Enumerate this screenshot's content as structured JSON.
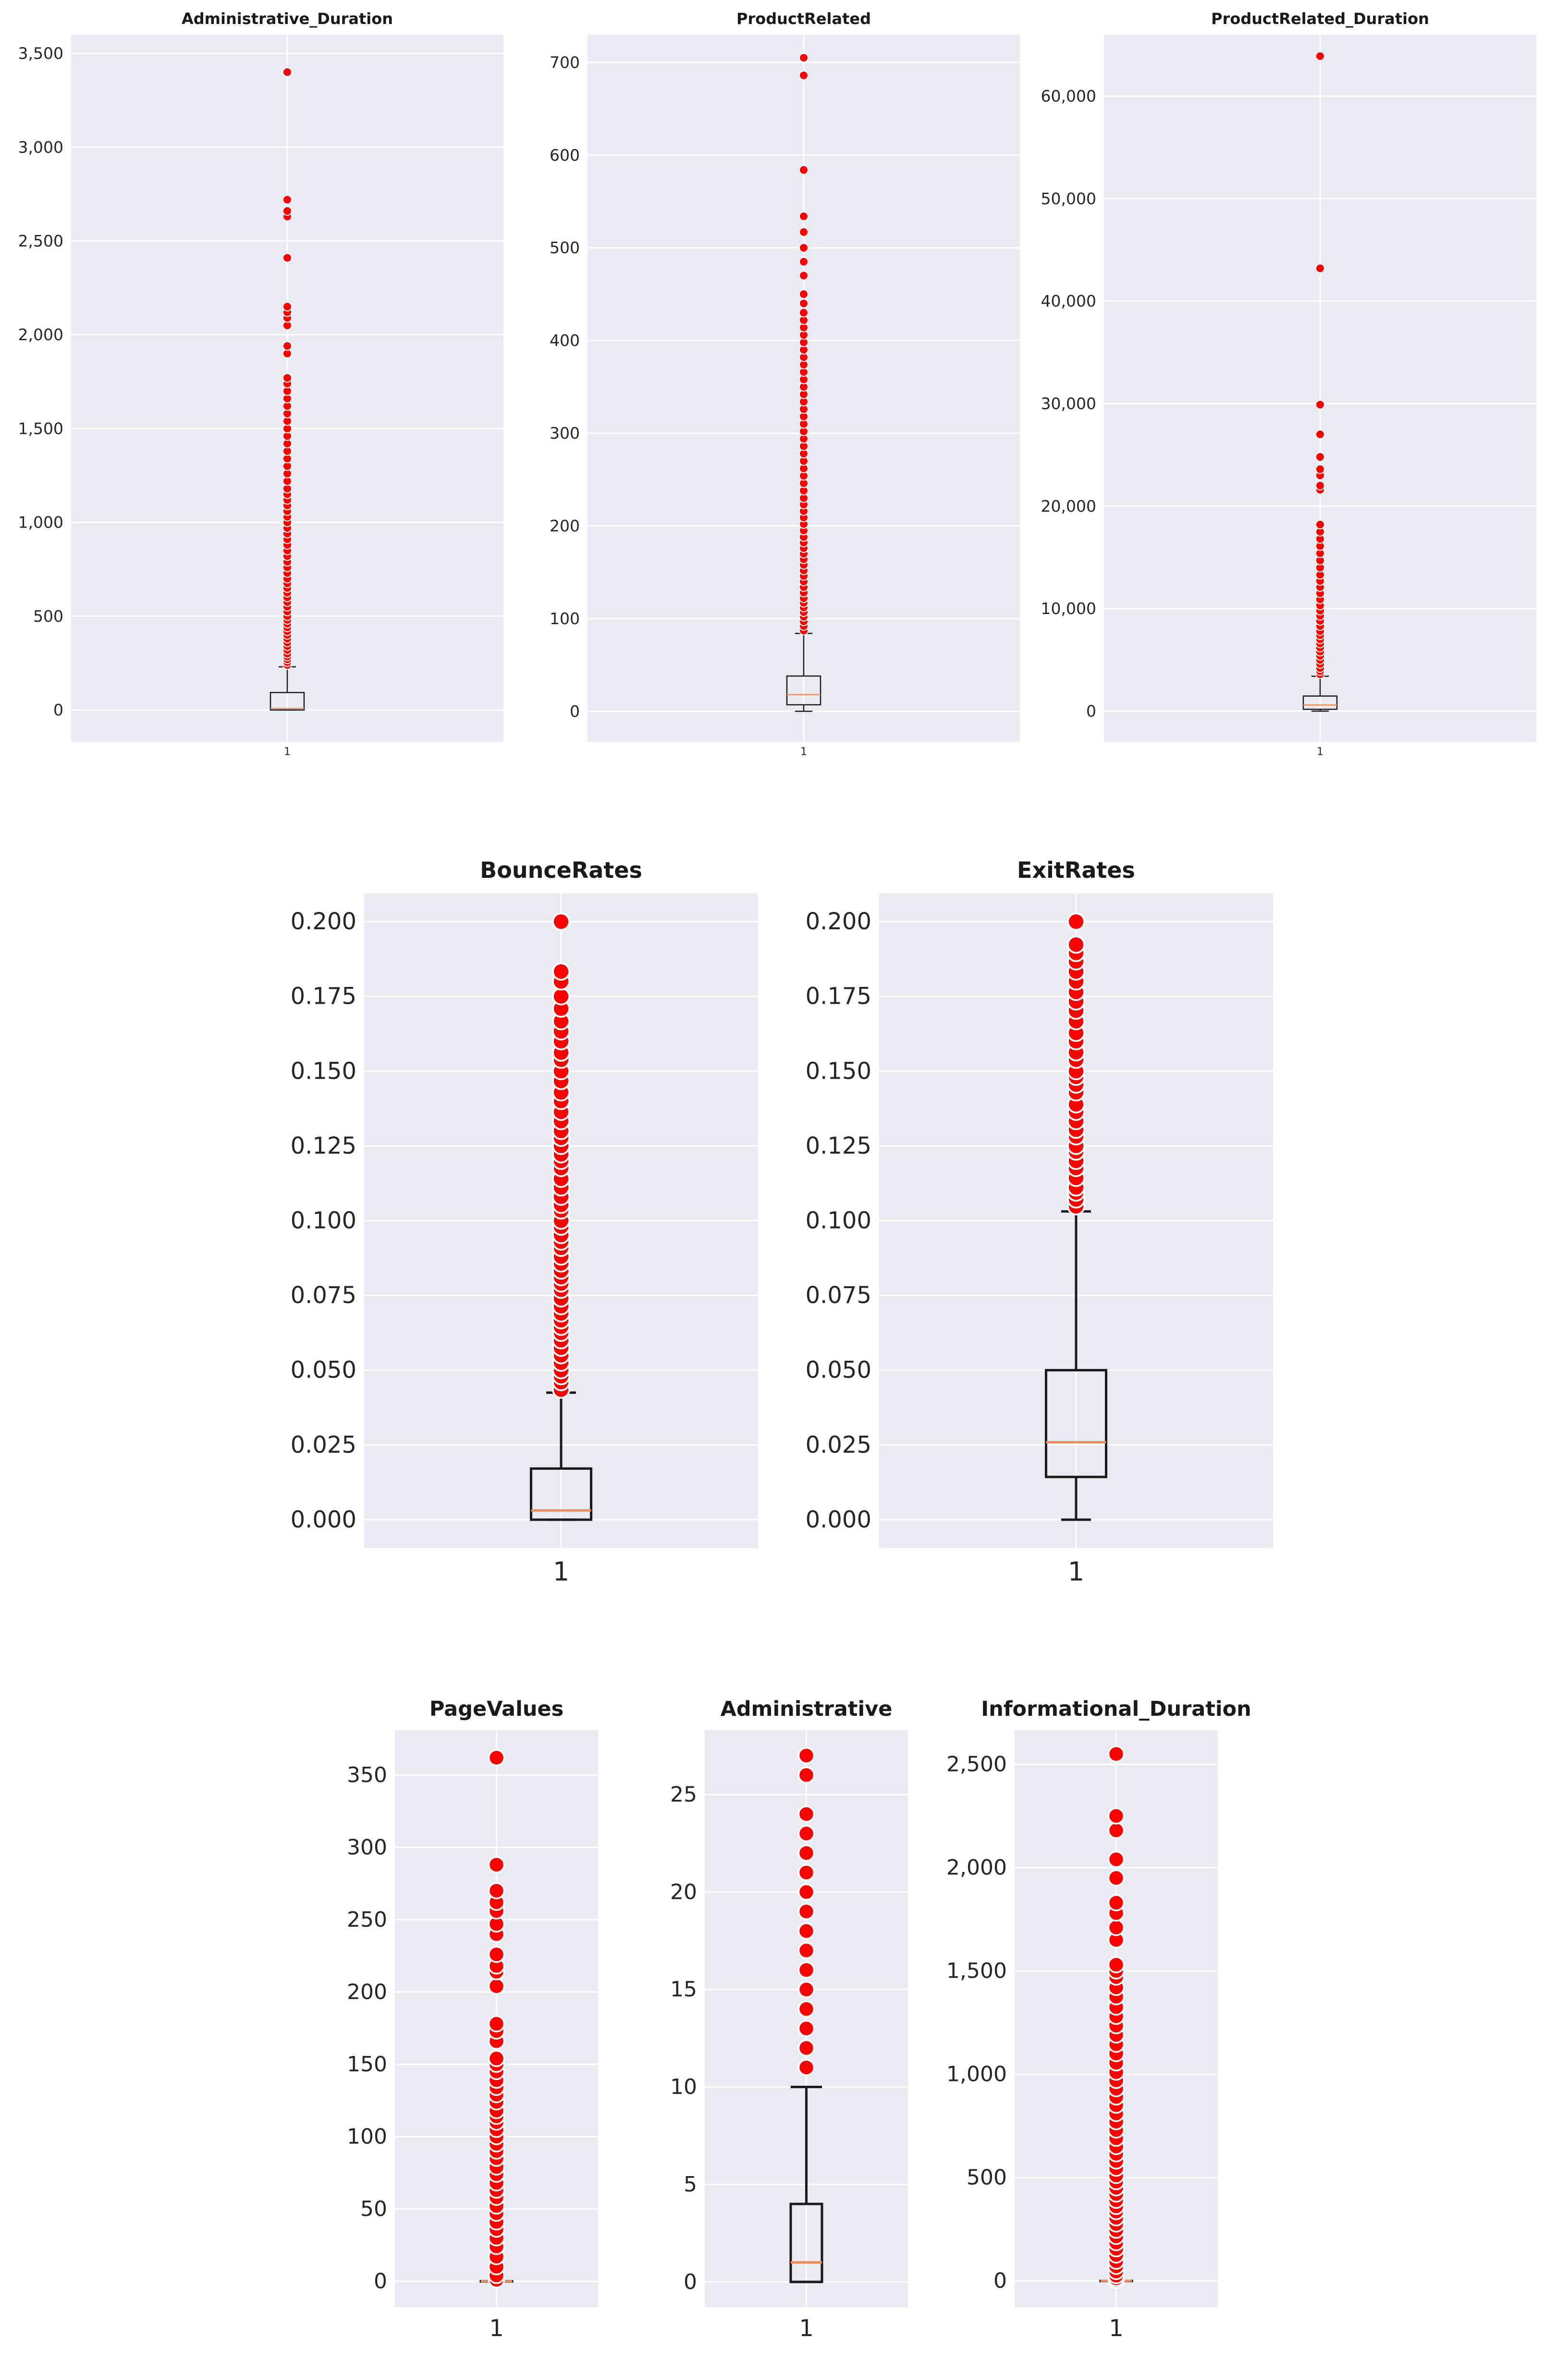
{
  "chart_data": [
    {
      "type": "box",
      "title": "Administrative_Duration",
      "ylim": [
        -170,
        3600
      ],
      "yticks": [
        0,
        500,
        1000,
        1500,
        2000,
        2500,
        3000,
        3500
      ],
      "ytick_labels": [
        "0",
        "500",
        "1,000",
        "1,500",
        "2,000",
        "2,500",
        "3,000",
        "3,500"
      ],
      "xtick_labels": [
        "1"
      ],
      "stats": {
        "whislo": 0,
        "q1": 0,
        "med": 8,
        "q3": 93,
        "whishi": 230
      },
      "outliers": [
        240,
        255,
        270,
        285,
        300,
        320,
        340,
        360,
        380,
        400,
        420,
        440,
        460,
        480,
        500,
        525,
        550,
        575,
        600,
        625,
        650,
        675,
        700,
        730,
        760,
        790,
        820,
        850,
        880,
        910,
        940,
        970,
        1000,
        1030,
        1060,
        1090,
        1120,
        1150,
        1180,
        1220,
        1260,
        1300,
        1340,
        1380,
        1420,
        1460,
        1500,
        1540,
        1580,
        1620,
        1660,
        1700,
        1740,
        1770,
        1900,
        1940,
        2050,
        2090,
        2120,
        2150,
        2410,
        2630,
        2660,
        2720,
        3400
      ]
    },
    {
      "type": "box",
      "title": "ProductRelated",
      "ylim": [
        -33,
        730
      ],
      "yticks": [
        0,
        100,
        200,
        300,
        400,
        500,
        600,
        700
      ],
      "ytick_labels": [
        "0",
        "100",
        "200",
        "300",
        "400",
        "500",
        "600",
        "700"
      ],
      "xtick_labels": [
        "1"
      ],
      "stats": {
        "whislo": 0,
        "q1": 7,
        "med": 18,
        "q3": 38,
        "whishi": 84
      },
      "outliers": [
        87,
        92,
        97,
        102,
        107,
        112,
        117,
        122,
        128,
        134,
        140,
        146,
        152,
        158,
        164,
        170,
        176,
        182,
        188,
        195,
        202,
        209,
        216,
        223,
        230,
        238,
        246,
        254,
        262,
        270,
        278,
        286,
        294,
        302,
        310,
        318,
        326,
        334,
        342,
        350,
        358,
        366,
        374,
        382,
        390,
        398,
        406,
        414,
        422,
        430,
        440,
        450,
        470,
        485,
        500,
        517,
        534,
        584,
        686,
        705
      ]
    },
    {
      "type": "box",
      "title": "ProductRelated_Duration",
      "ylim": [
        -3000,
        66000
      ],
      "yticks": [
        0,
        10000,
        20000,
        30000,
        40000,
        50000,
        60000
      ],
      "ytick_labels": [
        "0",
        "10,000",
        "20,000",
        "30,000",
        "40,000",
        "50,000",
        "60,000"
      ],
      "xtick_labels": [
        "1"
      ],
      "stats": {
        "whislo": 0,
        "q1": 180,
        "med": 600,
        "q3": 1470,
        "whishi": 3400
      },
      "outliers": [
        3600,
        3900,
        4200,
        4600,
        5000,
        5400,
        5800,
        6200,
        6600,
        7000,
        7400,
        7800,
        8300,
        8800,
        9300,
        9800,
        10300,
        10900,
        11500,
        12100,
        12700,
        13300,
        14000,
        14700,
        15400,
        16100,
        16800,
        17500,
        18200,
        21600,
        22000,
        23000,
        23600,
        24800,
        27000,
        29900,
        43200,
        63900
      ]
    },
    {
      "type": "box",
      "title": "BounceRates",
      "ylim": [
        -0.0095,
        0.2095
      ],
      "yticks": [
        0,
        0.025,
        0.05,
        0.075,
        0.1,
        0.125,
        0.15,
        0.175,
        0.2
      ],
      "ytick_labels": [
        "0.000",
        "0.025",
        "0.050",
        "0.075",
        "0.100",
        "0.125",
        "0.150",
        "0.175",
        "0.200"
      ],
      "xtick_labels": [
        "1"
      ],
      "stats": {
        "whislo": 0,
        "q1": 0,
        "med": 0.0031,
        "q3": 0.0171,
        "whishi": 0.0425
      },
      "outliers": [
        0.0435,
        0.046,
        0.048,
        0.05,
        0.0525,
        0.055,
        0.0575,
        0.06,
        0.0625,
        0.0645,
        0.0667,
        0.069,
        0.0714,
        0.074,
        0.0769,
        0.079,
        0.0811,
        0.0833,
        0.0857,
        0.088,
        0.0909,
        0.093,
        0.0952,
        0.098,
        0.1,
        0.1034,
        0.1053,
        0.108,
        0.1111,
        0.114,
        0.1176,
        0.12,
        0.1222,
        0.125,
        0.1277,
        0.13,
        0.1333,
        0.1364,
        0.14,
        0.1429,
        0.1467,
        0.15,
        0.1538,
        0.1562,
        0.16,
        0.1633,
        0.1667,
        0.1709,
        0.175,
        0.18,
        0.1833,
        0.2
      ]
    },
    {
      "type": "box",
      "title": "ExitRates",
      "ylim": [
        -0.0095,
        0.2095
      ],
      "yticks": [
        0,
        0.025,
        0.05,
        0.075,
        0.1,
        0.125,
        0.15,
        0.175,
        0.2
      ],
      "ytick_labels": [
        "0.000",
        "0.025",
        "0.050",
        "0.075",
        "0.100",
        "0.125",
        "0.150",
        "0.175",
        "0.200"
      ],
      "xtick_labels": [
        "1"
      ],
      "stats": {
        "whislo": 0,
        "q1": 0.0143,
        "med": 0.0259,
        "q3": 0.05,
        "whishi": 0.1031
      },
      "outliers": [
        0.1048,
        0.1071,
        0.1094,
        0.1111,
        0.1143,
        0.1176,
        0.12,
        0.1231,
        0.125,
        0.1282,
        0.1304,
        0.1333,
        0.1364,
        0.1389,
        0.1429,
        0.1455,
        0.1481,
        0.15,
        0.1538,
        0.1563,
        0.16,
        0.1628,
        0.1667,
        0.1702,
        0.1733,
        0.1765,
        0.18,
        0.1833,
        0.1867,
        0.1895,
        0.1923,
        0.2
      ]
    },
    {
      "type": "box",
      "title": "PageValues",
      "ylim": [
        -18,
        381
      ],
      "yticks": [
        0,
        50,
        100,
        150,
        200,
        250,
        300,
        350
      ],
      "ytick_labels": [
        "0",
        "50",
        "100",
        "150",
        "200",
        "250",
        "300",
        "350"
      ],
      "xtick_labels": [
        "1"
      ],
      "stats": {
        "whislo": 0,
        "q1": 0,
        "med": 0,
        "q3": 0,
        "whishi": 0
      },
      "outliers": [
        1,
        4,
        10,
        17,
        24,
        30,
        36,
        41,
        47,
        52,
        58,
        63,
        68,
        74,
        79,
        85,
        90,
        95,
        100,
        105,
        110,
        114,
        118,
        124,
        129,
        134,
        139,
        145,
        150,
        154,
        166,
        173,
        178,
        204,
        214,
        218,
        226,
        240,
        247,
        256,
        262,
        270,
        288,
        362
      ]
    },
    {
      "type": "box",
      "title": "Administrative",
      "ylim": [
        -1.3,
        28.3
      ],
      "yticks": [
        0,
        5,
        10,
        15,
        20,
        25
      ],
      "ytick_labels": [
        "0",
        "5",
        "10",
        "15",
        "20",
        "25"
      ],
      "xtick_labels": [
        "1"
      ],
      "stats": {
        "whislo": 0,
        "q1": 0,
        "med": 1,
        "q3": 4,
        "whishi": 10
      },
      "outliers": [
        11,
        12,
        13,
        14,
        15,
        16,
        17,
        18,
        19,
        20,
        21,
        22,
        23,
        24,
        26,
        27
      ]
    },
    {
      "type": "box",
      "title": "Informational_Duration",
      "ylim": [
        -128,
        2665
      ],
      "yticks": [
        0,
        500,
        1000,
        1500,
        2000,
        2500
      ],
      "ytick_labels": [
        "0",
        "500",
        "1,000",
        "1,500",
        "2,000",
        "2,500"
      ],
      "xtick_labels": [
        "1"
      ],
      "stats": {
        "whislo": 0,
        "q1": 0,
        "med": 0,
        "q3": 0,
        "whishi": 0
      },
      "outliers": [
        3,
        12,
        25,
        45,
        70,
        95,
        125,
        155,
        185,
        215,
        245,
        275,
        305,
        335,
        360,
        390,
        420,
        450,
        480,
        510,
        545,
        580,
        615,
        650,
        690,
        730,
        770,
        810,
        850,
        890,
        930,
        970,
        1010,
        1055,
        1100,
        1145,
        1190,
        1235,
        1280,
        1325,
        1375,
        1420,
        1470,
        1500,
        1530,
        1650,
        1710,
        1780,
        1830,
        1950,
        2040,
        2180,
        2250,
        2550
      ]
    }
  ]
}
